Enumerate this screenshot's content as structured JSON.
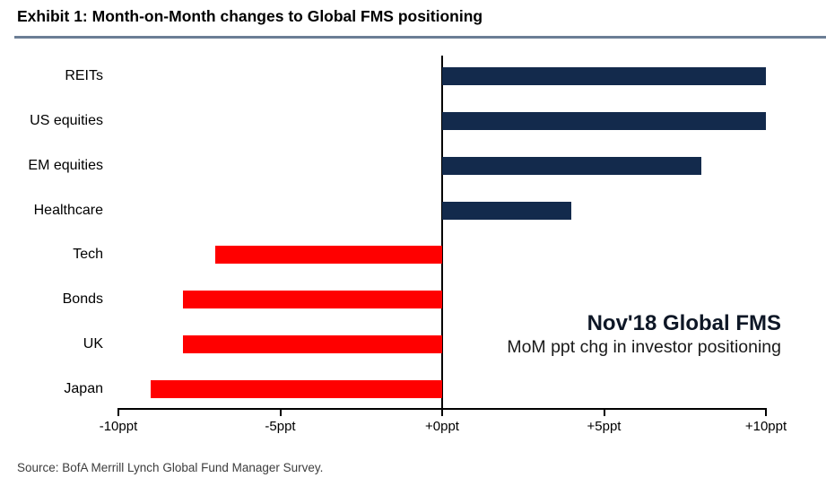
{
  "header": {
    "title": "Exhibit 1: Month-on-Month changes to Global FMS positioning"
  },
  "annotation": {
    "title": "Nov'18 Global FMS",
    "subtitle": "MoM ppt chg in investor positioning"
  },
  "source": {
    "text": "Source: BofA Merrill Lynch Global Fund Manager Survey."
  },
  "colors": {
    "positive_bar": "#132A4C",
    "negative_bar": "#FF0000",
    "title_rule": "#6B7E95",
    "axis": "#000000"
  },
  "chart_data": {
    "type": "bar",
    "orientation": "horizontal",
    "title": "Nov'18 Global FMS",
    "subtitle": "MoM ppt chg in investor positioning",
    "categories": [
      "REITs",
      "US equities",
      "EM equities",
      "Healthcare",
      "Tech",
      "Bonds",
      "UK",
      "Japan"
    ],
    "values": [
      10,
      10,
      8,
      4,
      -7,
      -8,
      -8,
      -9
    ],
    "unit": "ppt",
    "xlabel": "",
    "ylabel": "",
    "xlim": [
      -10,
      10
    ],
    "x_ticks": [
      -10,
      -5,
      0,
      5,
      10
    ],
    "x_tick_labels": [
      "-10ppt",
      "-5ppt",
      "+0ppt",
      "+5ppt",
      "+10ppt"
    ],
    "grid": false,
    "legend": "none",
    "positive_color": "#132A4C",
    "negative_color": "#FF0000"
  }
}
